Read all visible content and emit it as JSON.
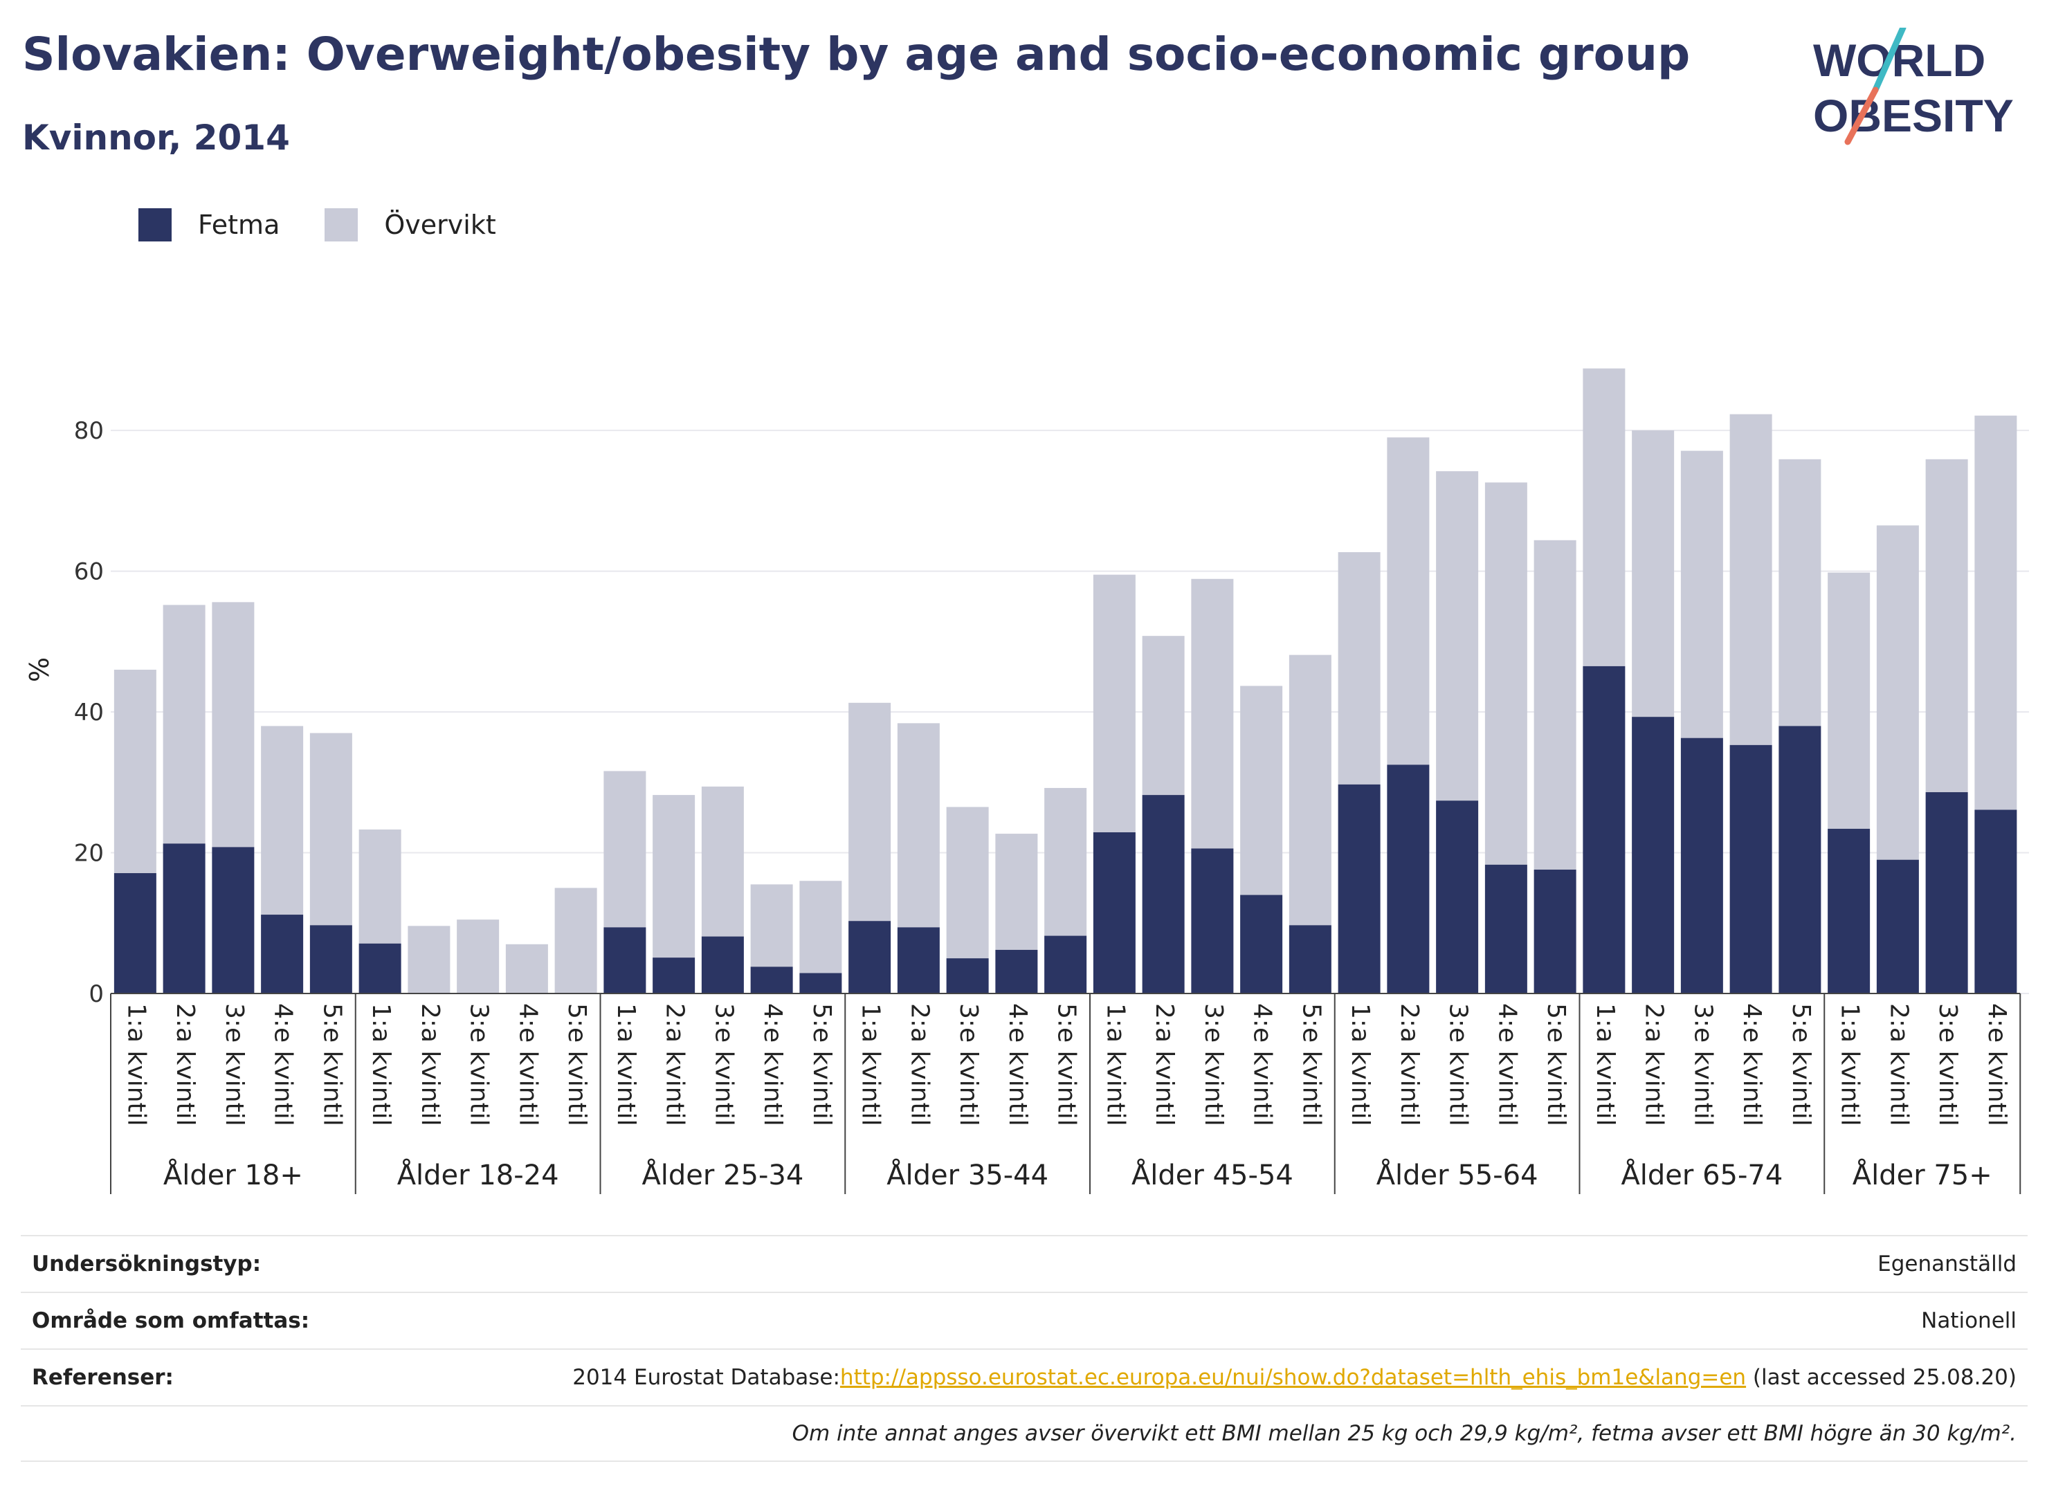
{
  "header": {
    "title": "Slovakien: Overweight/obesity by age and socio-economic group",
    "subtitle": "Kvinnor, 2014",
    "logo_line1": "WORLD",
    "logo_line2": "OBESITY"
  },
  "colors": {
    "fetma": "#2b3563",
    "overvikt": "#c9cbd8",
    "title": "#2d3561",
    "link": "#e0a800",
    "logo_slash_top": "#3fb9c4",
    "logo_slash_bottom": "#e8725a"
  },
  "legend": {
    "items": [
      {
        "label": "Fetma",
        "color": "#2b3563"
      },
      {
        "label": "Övervikt",
        "color": "#c9cbd8"
      }
    ]
  },
  "chart_data": {
    "type": "bar",
    "stacked": true,
    "ylabel": "%",
    "ylim": [
      0,
      92
    ],
    "yticks": [
      0,
      20,
      40,
      60,
      80
    ],
    "grid": true,
    "legend_position": "top-left",
    "groups": [
      {
        "label": "Ålder 18+",
        "categories": [
          "1:a kvintil",
          "2:a kvintil",
          "3:e kvintil",
          "4:e kvintil",
          "5:e kvintil"
        ]
      },
      {
        "label": "Ålder 18-24",
        "categories": [
          "1:a kvintil",
          "2:a kvintil",
          "3:e kvintil",
          "4:e kvintil",
          "5:e kvintil"
        ]
      },
      {
        "label": "Ålder 25-34",
        "categories": [
          "1:a kvintil",
          "2:a kvintil",
          "3:e kvintil",
          "4:e kvintil",
          "5:e kvintil"
        ]
      },
      {
        "label": "Ålder 35-44",
        "categories": [
          "1:a kvintil",
          "2:a kvintil",
          "3:e kvintil",
          "4:e kvintil",
          "5:e kvintil"
        ]
      },
      {
        "label": "Ålder 45-54",
        "categories": [
          "1:a kvintil",
          "2:a kvintil",
          "3:e kvintil",
          "4:e kvintil",
          "5:e kvintil"
        ]
      },
      {
        "label": "Ålder 55-64",
        "categories": [
          "1:a kvintil",
          "2:a kvintil",
          "3:e kvintil",
          "4:e kvintil",
          "5:e kvintil"
        ]
      },
      {
        "label": "Ålder 65-74",
        "categories": [
          "1:a kvintil",
          "2:a kvintil",
          "3:e kvintil",
          "4:e kvintil",
          "5:e kvintil"
        ]
      },
      {
        "label": "Ålder 75+",
        "categories": [
          "1:a kvintil",
          "2:a kvintil",
          "3:e kvintil",
          "4:e kvintil"
        ]
      }
    ],
    "series": [
      {
        "name": "Fetma",
        "values": [
          17.1,
          21.3,
          20.8,
          11.2,
          9.7,
          7.1,
          0,
          0,
          0,
          0,
          9.4,
          5.1,
          8.1,
          3.8,
          2.9,
          10.3,
          9.4,
          5.0,
          6.2,
          8.2,
          22.9,
          28.2,
          20.6,
          14.0,
          9.7,
          29.7,
          32.5,
          27.4,
          18.3,
          17.6,
          46.5,
          39.3,
          36.3,
          35.3,
          38.0,
          23.4,
          19.0,
          28.6,
          26.1
        ]
      },
      {
        "name": "Övervikt",
        "values": [
          28.9,
          33.9,
          34.8,
          26.8,
          27.3,
          16.2,
          9.6,
          10.5,
          7.0,
          15.0,
          22.2,
          23.1,
          21.3,
          11.7,
          13.1,
          31.0,
          29.0,
          21.5,
          16.5,
          21.0,
          36.6,
          22.6,
          38.3,
          29.7,
          38.4,
          33.0,
          46.5,
          46.8,
          54.3,
          46.8,
          42.3,
          40.7,
          40.8,
          47.0,
          37.9,
          36.4,
          47.5,
          47.3,
          56.0
        ]
      }
    ]
  },
  "info": {
    "rows": [
      {
        "key": "Undersökningstyp:",
        "value": "Egenanställd"
      },
      {
        "key": "Område som omfattas:",
        "value": "Nationell"
      }
    ],
    "references": {
      "key": "Referenser:",
      "prefix": "2014 Eurostat Database:",
      "link": "http://appsso.eurostat.ec.europa.eu/nui/show.do?dataset=hlth_ehis_bm1e&lang=en",
      "suffix": " (last accessed 25.08.20)"
    },
    "note": "Om inte annat anges avser övervikt ett BMI mellan 25 kg och 29,9 kg/m², fetma avser ett BMI högre än 30 kg/m²."
  }
}
